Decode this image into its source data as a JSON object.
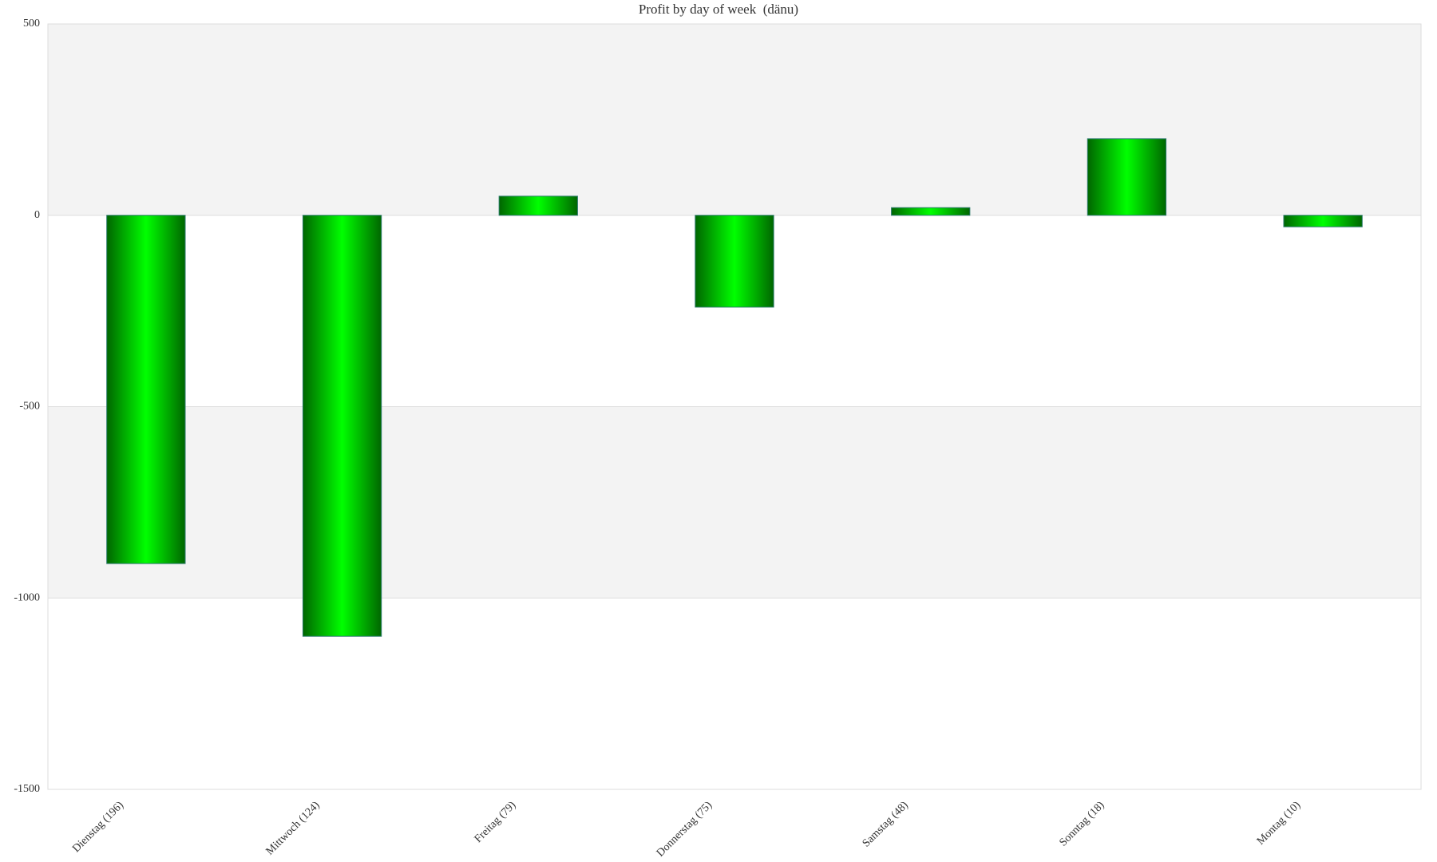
{
  "chart_data": {
    "type": "bar",
    "title": "Profit by day of week  (dänu)",
    "categories": [
      "Dienstag (196)",
      "Mittwoch (124)",
      "Freitag (79)",
      "Donnerstag (75)",
      "Samstag (48)",
      "Sonntag (18)",
      "Montag (10)"
    ],
    "values": [
      -910,
      -1100,
      50,
      -240,
      20,
      200,
      -30
    ],
    "color": "#00ee00",
    "ylim": [
      -1500,
      500
    ],
    "yticks": [
      500,
      0,
      -500,
      -1000,
      -1500
    ],
    "grid": true
  }
}
